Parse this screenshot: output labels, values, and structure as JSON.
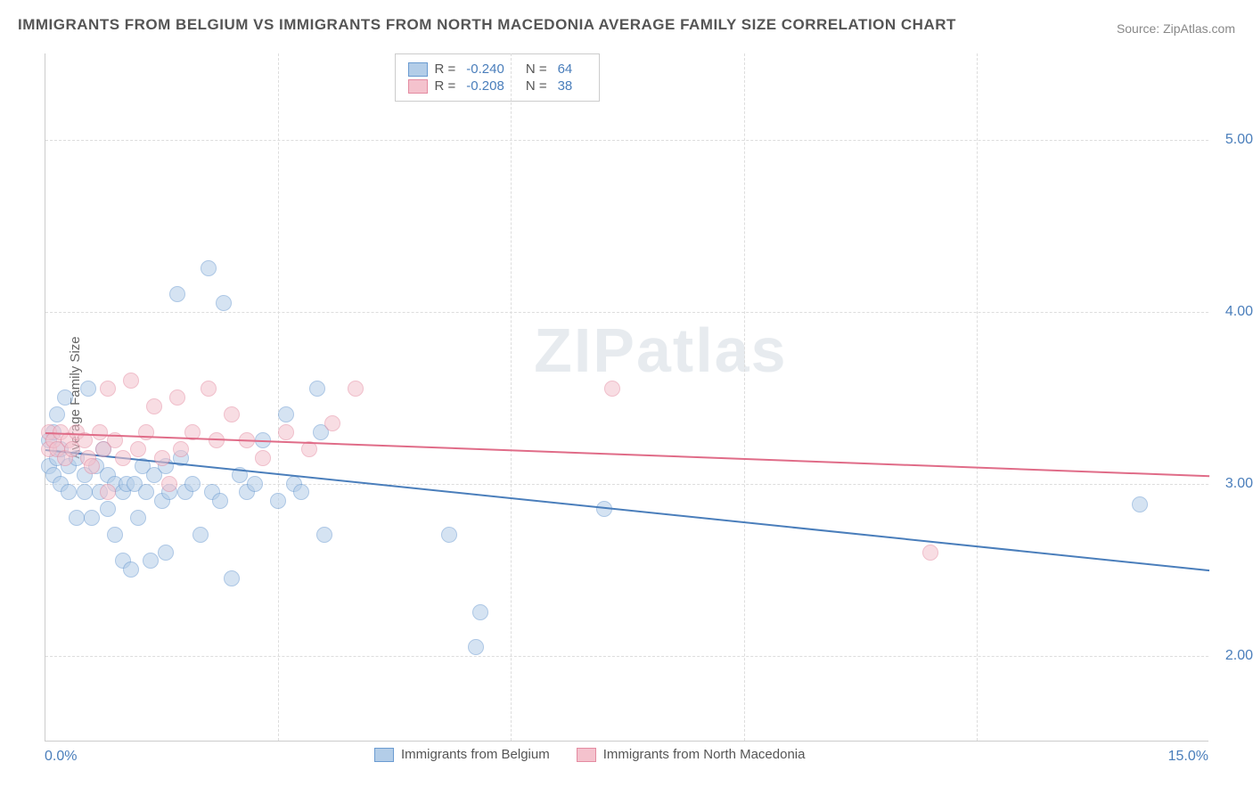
{
  "title": "IMMIGRANTS FROM BELGIUM VS IMMIGRANTS FROM NORTH MACEDONIA AVERAGE FAMILY SIZE CORRELATION CHART",
  "source": "Source: ZipAtlas.com",
  "watermark": "ZIPatlas",
  "chart": {
    "type": "scatter",
    "background_color": "#ffffff",
    "grid_color": "#dddddd",
    "axis_color": "#cccccc",
    "tick_label_color": "#4a7ebb",
    "y_axis_title": "Average Family Size",
    "y_axis_title_fontsize": 15,
    "xlim": [
      0,
      15
    ],
    "ylim": [
      1.5,
      5.5
    ],
    "yticks": [
      2.0,
      3.0,
      4.0,
      5.0
    ],
    "ytick_labels": [
      "2.00",
      "3.00",
      "4.00",
      "5.00"
    ],
    "xtick_min": {
      "value": 0,
      "label": "0.0%"
    },
    "xtick_max": {
      "value": 15,
      "label": "15.0%"
    },
    "vgrid_positions": [
      3.0,
      6.0,
      9.0,
      12.0
    ],
    "title_fontsize": 17,
    "tick_fontsize": 16,
    "marker_radius": 9,
    "marker_opacity": 0.55,
    "line_width": 2
  },
  "legend_top": {
    "rows": [
      {
        "swatch_fill": "#b3cde8",
        "swatch_stroke": "#6b9bd1",
        "r_label": "R =",
        "r_value": "-0.240",
        "n_label": "N =",
        "n_value": "64"
      },
      {
        "swatch_fill": "#f4c2cd",
        "swatch_stroke": "#e48ba1",
        "r_label": "R =",
        "r_value": "-0.208",
        "n_label": "N =",
        "n_value": "38"
      }
    ]
  },
  "legend_bottom": {
    "items": [
      {
        "swatch_fill": "#b3cde8",
        "swatch_stroke": "#6b9bd1",
        "label": "Immigrants from Belgium"
      },
      {
        "swatch_fill": "#f4c2cd",
        "swatch_stroke": "#e48ba1",
        "label": "Immigrants from North Macedonia"
      }
    ]
  },
  "series": [
    {
      "name": "Immigrants from Belgium",
      "color_fill": "#b3cde8",
      "color_stroke": "#6b9bd1",
      "trend": {
        "x1": 0,
        "y1": 3.2,
        "x2": 15,
        "y2": 2.5,
        "color": "#4a7ebb"
      },
      "points": [
        [
          0.05,
          3.25
        ],
        [
          0.05,
          3.1
        ],
        [
          0.1,
          3.3
        ],
        [
          0.1,
          3.05
        ],
        [
          0.15,
          3.4
        ],
        [
          0.15,
          3.15
        ],
        [
          0.2,
          3.0
        ],
        [
          0.2,
          3.2
        ],
        [
          0.25,
          3.5
        ],
        [
          0.3,
          2.95
        ],
        [
          0.3,
          3.1
        ],
        [
          0.4,
          3.15
        ],
        [
          0.4,
          2.8
        ],
        [
          0.5,
          3.05
        ],
        [
          0.5,
          2.95
        ],
        [
          0.55,
          3.55
        ],
        [
          0.6,
          2.8
        ],
        [
          0.65,
          3.1
        ],
        [
          0.7,
          2.95
        ],
        [
          0.75,
          3.2
        ],
        [
          0.8,
          2.85
        ],
        [
          0.8,
          3.05
        ],
        [
          0.9,
          3.0
        ],
        [
          0.9,
          2.7
        ],
        [
          1.0,
          2.55
        ],
        [
          1.0,
          2.95
        ],
        [
          1.05,
          3.0
        ],
        [
          1.1,
          2.5
        ],
        [
          1.15,
          3.0
        ],
        [
          1.2,
          2.8
        ],
        [
          1.25,
          3.1
        ],
        [
          1.3,
          2.95
        ],
        [
          1.35,
          2.55
        ],
        [
          1.4,
          3.05
        ],
        [
          1.5,
          2.9
        ],
        [
          1.55,
          2.6
        ],
        [
          1.55,
          3.1
        ],
        [
          1.6,
          2.95
        ],
        [
          1.7,
          4.1
        ],
        [
          1.75,
          3.15
        ],
        [
          1.8,
          2.95
        ],
        [
          1.9,
          3.0
        ],
        [
          2.0,
          2.7
        ],
        [
          2.1,
          4.25
        ],
        [
          2.15,
          2.95
        ],
        [
          2.25,
          2.9
        ],
        [
          2.3,
          4.05
        ],
        [
          2.4,
          2.45
        ],
        [
          2.5,
          3.05
        ],
        [
          2.6,
          2.95
        ],
        [
          2.7,
          3.0
        ],
        [
          2.8,
          3.25
        ],
        [
          3.0,
          2.9
        ],
        [
          3.1,
          3.4
        ],
        [
          3.2,
          3.0
        ],
        [
          3.3,
          2.95
        ],
        [
          3.5,
          3.55
        ],
        [
          3.55,
          3.3
        ],
        [
          3.6,
          2.7
        ],
        [
          5.2,
          2.7
        ],
        [
          5.55,
          2.05
        ],
        [
          5.6,
          2.25
        ],
        [
          7.2,
          2.85
        ],
        [
          14.1,
          2.88
        ]
      ]
    },
    {
      "name": "Immigrants from North Macedonia",
      "color_fill": "#f4c2cd",
      "color_stroke": "#e48ba1",
      "trend": {
        "x1": 0,
        "y1": 3.3,
        "x2": 15,
        "y2": 3.05,
        "color": "#e06c88"
      },
      "points": [
        [
          0.05,
          3.2
        ],
        [
          0.05,
          3.3
        ],
        [
          0.1,
          3.25
        ],
        [
          0.15,
          3.2
        ],
        [
          0.2,
          3.3
        ],
        [
          0.25,
          3.15
        ],
        [
          0.3,
          3.25
        ],
        [
          0.35,
          3.2
        ],
        [
          0.4,
          3.3
        ],
        [
          0.5,
          3.25
        ],
        [
          0.55,
          3.15
        ],
        [
          0.6,
          3.1
        ],
        [
          0.7,
          3.3
        ],
        [
          0.75,
          3.2
        ],
        [
          0.8,
          3.55
        ],
        [
          0.8,
          2.95
        ],
        [
          0.9,
          3.25
        ],
        [
          1.0,
          3.15
        ],
        [
          1.1,
          3.6
        ],
        [
          1.2,
          3.2
        ],
        [
          1.3,
          3.3
        ],
        [
          1.4,
          3.45
        ],
        [
          1.5,
          3.15
        ],
        [
          1.6,
          3.0
        ],
        [
          1.7,
          3.5
        ],
        [
          1.75,
          3.2
        ],
        [
          1.9,
          3.3
        ],
        [
          2.1,
          3.55
        ],
        [
          2.2,
          3.25
        ],
        [
          2.4,
          3.4
        ],
        [
          2.6,
          3.25
        ],
        [
          2.8,
          3.15
        ],
        [
          3.1,
          3.3
        ],
        [
          3.4,
          3.2
        ],
        [
          3.7,
          3.35
        ],
        [
          4.0,
          3.55
        ],
        [
          7.3,
          3.55
        ],
        [
          11.4,
          2.6
        ]
      ]
    }
  ]
}
